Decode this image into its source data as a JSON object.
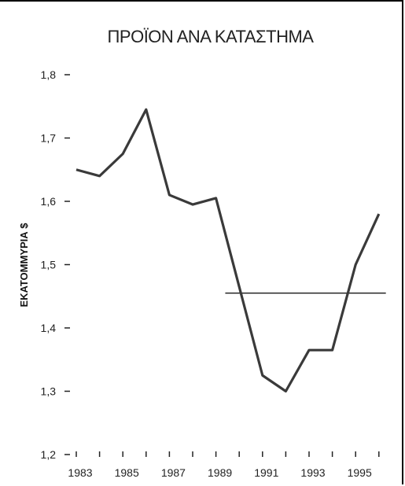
{
  "chart_data": {
    "type": "line",
    "title": "ΠΡΟΪΟΝ ΑΝΑ ΚΑΤΑΣΤΗΜΑ",
    "ylabel": "ΕΚΑΤΟΜΜΥΡΙΑ $",
    "xlabel": "",
    "ylim": [
      1.2,
      1.8
    ],
    "yticks": [
      "1,2",
      "1,3",
      "1,4",
      "1,5",
      "1,6",
      "1,7",
      "1,8"
    ],
    "xtick_labels": [
      "1983",
      "1985",
      "1987",
      "1989",
      "1991",
      "1993",
      "1995"
    ],
    "x": [
      1982.5,
      1983.5,
      1984.5,
      1985.5,
      1986.5,
      1987.5,
      1988.5,
      1989.5,
      1990.5,
      1991.5,
      1992.5,
      1993.5,
      1994.5,
      1995.5
    ],
    "series": [
      {
        "values": [
          1.65,
          1.64,
          1.675,
          1.745,
          1.61,
          1.595,
          1.605,
          1.465,
          1.325,
          1.3,
          1.365,
          1.365,
          1.5,
          1.58
        ]
      }
    ],
    "reference_line": {
      "value": 1.455,
      "x_start": 1988.9,
      "x_end": 1995.8
    },
    "grid": false,
    "colors": {
      "line": "#3a3a3a",
      "reference": "#000000"
    }
  }
}
